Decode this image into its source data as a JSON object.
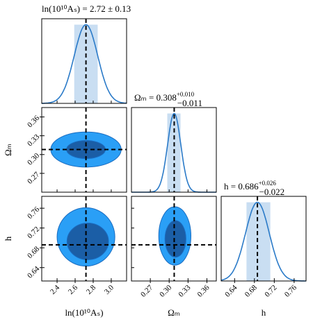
{
  "chart_data": {
    "type": "corner",
    "params": [
      {
        "label": "ln(10¹⁰Aₛ)",
        "title": "ln(10¹⁰Aₛ) = 2.72 ± 0.13",
        "mean": 2.72,
        "err_plus": 0.13,
        "err_minus": 0.13,
        "lim": [
          2.23,
          3.17
        ],
        "ticks": [
          2.4,
          2.6,
          2.8,
          {
            "value": 3,
            "label": "3.0"
          }
        ]
      },
      {
        "label": "Ωₘ",
        "title": "Ωₘ = 0.308",
        "err_plus_label": "+0.010",
        "err_minus_label": "−0.011",
        "mean": 0.308,
        "err_plus": 0.01,
        "err_minus": 0.011,
        "lim": [
          0.24,
          0.375
        ],
        "ticks": [
          0.27,
          {
            "value": 0.3,
            "label": "0.30"
          },
          0.33,
          0.36
        ]
      },
      {
        "label": "h",
        "title": "h = 0.686",
        "err_plus_label": "+0.026",
        "err_minus_label": "−0.022",
        "mean": 0.686,
        "err_plus": 0.026,
        "err_minus": 0.022,
        "lim": [
          0.613,
          0.784
        ],
        "ticks": [
          0.64,
          0.68,
          0.72,
          0.76
        ]
      }
    ],
    "contours": [
      {
        "x_param": 0,
        "y_param": 1,
        "levels": [
          {
            "cx": 2.72,
            "cy": 0.308,
            "rx": 0.39,
            "ry": 0.028
          },
          {
            "cx": 2.72,
            "cy": 0.308,
            "rx": 0.215,
            "ry": 0.0144
          }
        ]
      },
      {
        "x_param": 0,
        "y_param": 2,
        "levels": [
          {
            "cx": 2.72,
            "cy": 0.702,
            "rx": 0.32,
            "ry": 0.059
          },
          {
            "cx": 2.74,
            "cy": 0.693,
            "rx": 0.23,
            "ry": 0.037
          }
        ]
      },
      {
        "x_param": 1,
        "y_param": 2,
        "levels": [
          {
            "cx": 0.309,
            "cy": 0.704,
            "rx": 0.0256,
            "ry": 0.059
          },
          {
            "cx": 0.31,
            "cy": 0.698,
            "rx": 0.0167,
            "ry": 0.037
          }
        ]
      }
    ],
    "level_colors": [
      "#2a9ff6",
      "#1b5ea6"
    ],
    "line_color": "#2a7ac8",
    "band_color": "#c9def2"
  }
}
